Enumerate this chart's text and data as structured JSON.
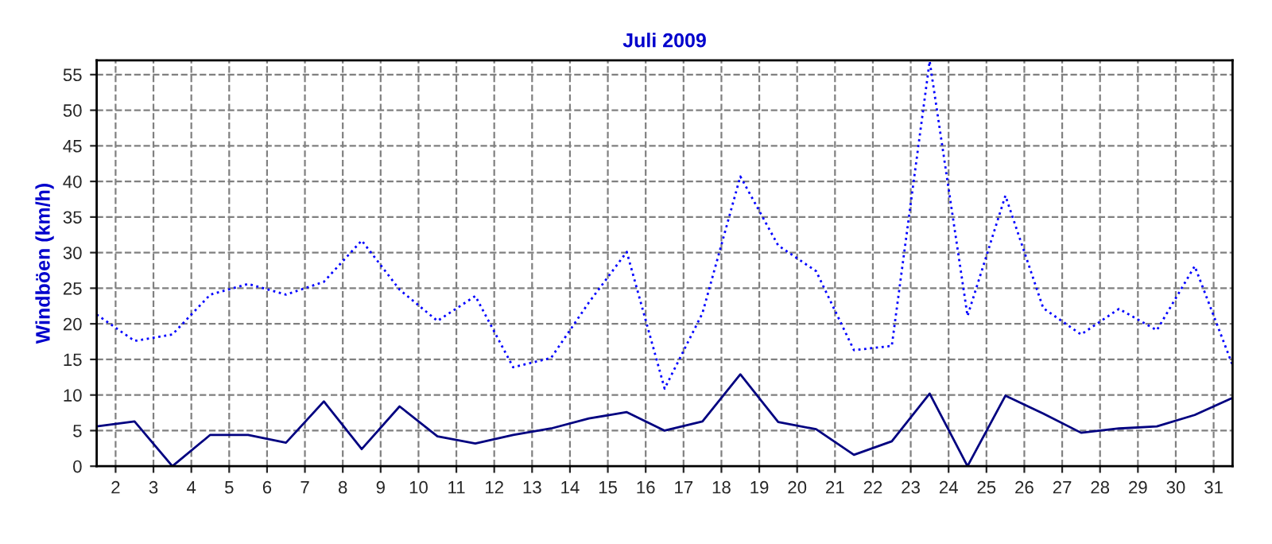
{
  "chart_data": {
    "type": "line",
    "title": "Juli 2009",
    "ylabel": "Windböen (km/h)",
    "x": [
      1.5,
      2.5,
      3.5,
      4.5,
      5.5,
      6.5,
      7.5,
      8.5,
      9.5,
      10.5,
      11.5,
      12.5,
      13.5,
      14.5,
      15.5,
      16.5,
      17.5,
      18.5,
      19.5,
      20.5,
      21.5,
      22.5,
      23.5,
      24.5,
      25.5,
      26.5,
      27.5,
      28.5,
      29.5,
      30.5,
      31.5
    ],
    "series": [
      {
        "color": "#0000ff",
        "line_style": "dotted",
        "values": [
          21.3,
          17.6,
          18.5,
          24.1,
          25.6,
          24.1,
          25.9,
          31.7,
          24.8,
          20.4,
          23.9,
          13.9,
          15.2,
          23.0,
          30.1,
          10.9,
          21.5,
          40.7,
          31.0,
          27.4,
          16.3,
          16.9,
          56.9,
          21.1,
          38.0,
          22.2,
          18.5,
          22.1,
          19.1,
          28.1,
          14.2
        ]
      },
      {
        "color": "#000080",
        "line_style": "solid",
        "values": [
          5.6,
          6.3,
          0,
          4.4,
          4.4,
          3.3,
          9.1,
          2.4,
          8.4,
          4.2,
          3.2,
          4.4,
          5.3,
          6.7,
          7.6,
          5.0,
          6.3,
          12.9,
          6.2,
          5.2,
          1.6,
          3.5,
          10.2,
          0,
          9.9,
          7.4,
          4.7,
          5.3,
          5.6,
          7.2,
          9.6
        ]
      }
    ],
    "xlim": [
      1.5,
      31.5
    ],
    "xticks": [
      2,
      3,
      4,
      5,
      6,
      7,
      8,
      9,
      10,
      11,
      12,
      13,
      14,
      15,
      16,
      17,
      18,
      19,
      20,
      21,
      22,
      23,
      24,
      25,
      26,
      27,
      28,
      29,
      30,
      31
    ],
    "ylim": [
      0,
      57
    ],
    "yticks": [
      0,
      5,
      10,
      15,
      20,
      25,
      30,
      35,
      40,
      45,
      50,
      55
    ],
    "grid": true,
    "marker": "none"
  }
}
